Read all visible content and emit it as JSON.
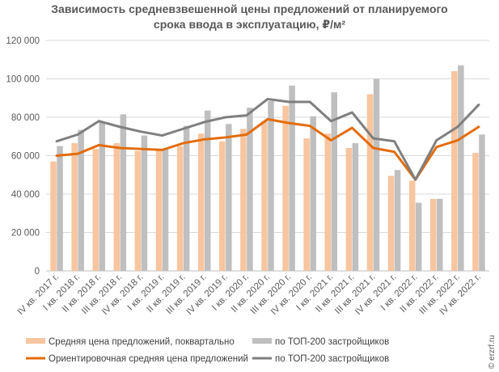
{
  "chart_data": {
    "type": "bar",
    "title_lines": [
      "Зависимость средневзвешенной цены предложений от планируемого",
      "срока ввода в эксплуатацию, ₽/м²"
    ],
    "categories": [
      "IV кв. 2017 г.",
      "I кв. 2018 г.",
      "II кв. 2018 г.",
      "III кв. 2018 г.",
      "IV кв. 2018 г.",
      "I кв. 2019 г.",
      "II кв. 2019 г.",
      "III кв. 2019 г.",
      "IV кв. 2019 г.",
      "I кв. 2020 г.",
      "II кв. 2020 г.",
      "III кв. 2020 г.",
      "IV кв. 2020 г.",
      "I кв. 2021 г.",
      "II кв. 2021 г.",
      "III кв. 2021 г.",
      "IV кв. 2021 г.",
      "I кв. 2022 г.",
      "II кв. 2022 г.",
      "III кв. 2022 г.",
      "IV кв. 2022 г."
    ],
    "ylim": [
      0,
      120000
    ],
    "yticks": [
      0,
      20000,
      40000,
      60000,
      80000,
      100000,
      120000
    ],
    "ytick_labels": [
      "0",
      "20 000",
      "40 000",
      "60 000",
      "80 000",
      "100 000",
      "120 000"
    ],
    "grid": true,
    "legend_position": "bottom",
    "series": [
      {
        "name": "Средняя цена предложений,  поквартально",
        "type": "bar",
        "color": "#f7c59f",
        "values": [
          57000,
          66500,
          63500,
          66500,
          62500,
          62500,
          65000,
          71500,
          67500,
          74000,
          78000,
          86000,
          69000,
          71500,
          64000,
          92000,
          49500,
          47000,
          37500,
          104000,
          61500
        ]
      },
      {
        "name": "по ТОП-200 застройщиков",
        "type": "bar",
        "color": "#bfbfbf",
        "values": [
          65000,
          73500,
          77500,
          81500,
          70500,
          63500,
          75500,
          83500,
          76500,
          85000,
          88500,
          96500,
          80500,
          93000,
          66500,
          100000,
          52500,
          35500,
          37500,
          107000,
          71000
        ]
      },
      {
        "name": "Ориентировочная   средняя цена предложений",
        "type": "line",
        "color": "#e36c0a",
        "values": [
          60000,
          61000,
          65500,
          64000,
          63500,
          63000,
          66500,
          68500,
          69500,
          71000,
          79000,
          77000,
          75500,
          68000,
          74500,
          64000,
          62000,
          47500,
          64500,
          68000,
          75000
        ]
      },
      {
        "name": "по ТОП-200 застройщиков",
        "type": "line",
        "color": "#7f7f7f",
        "values": [
          67500,
          71000,
          78000,
          75000,
          72500,
          70500,
          74000,
          77500,
          80000,
          81000,
          89500,
          88000,
          88000,
          78000,
          82500,
          69000,
          67500,
          47500,
          68000,
          75000,
          86500
        ]
      }
    ]
  },
  "watermark": "© erzrf.ru"
}
